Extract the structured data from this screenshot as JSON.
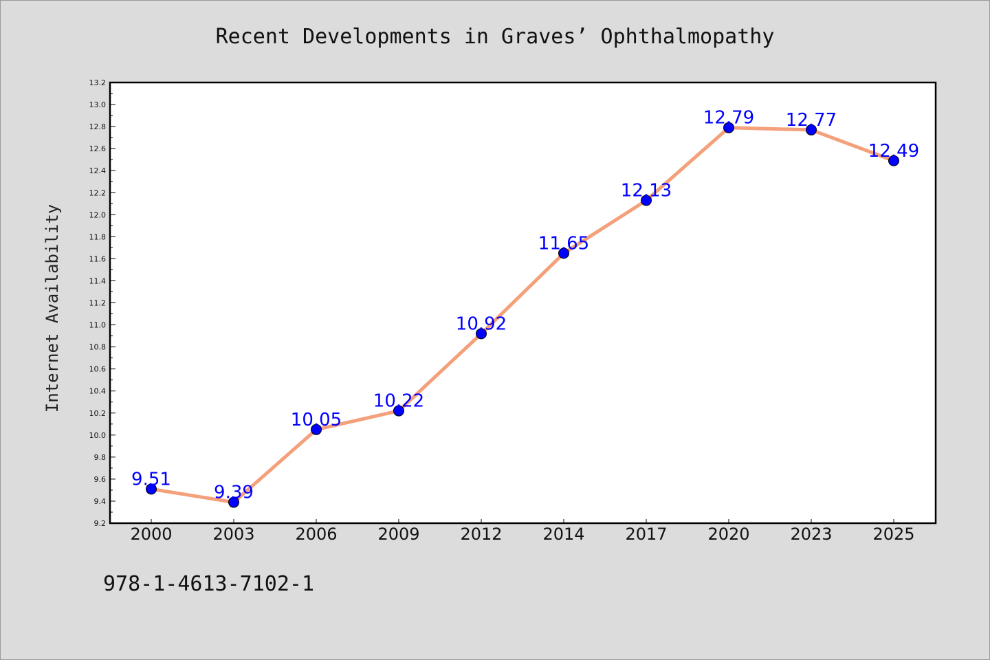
{
  "chart_data": {
    "type": "line",
    "title": "Recent Developments in Graves’ Ophthalmopathy",
    "xlabel": "",
    "ylabel": "Internet Availability",
    "categories": [
      "2000",
      "2003",
      "2006",
      "2009",
      "2012",
      "2014",
      "2017",
      "2020",
      "2023",
      "2025"
    ],
    "series": [
      {
        "values": [
          9.51,
          9.39,
          10.05,
          10.22,
          10.92,
          11.65,
          12.13,
          12.79,
          12.77,
          12.49
        ]
      }
    ],
    "data_labels": [
      "9.51",
      "9.39",
      "10.05",
      "10.22",
      "10.92",
      "11.65",
      "12.13",
      "12.79",
      "12.77",
      "12.49"
    ],
    "ylim": [
      9.2,
      13.2
    ],
    "yticks": [
      "9.2",
      "9.4",
      "9.6",
      "9.8",
      "10.0",
      "10.2",
      "10.4",
      "10.6",
      "10.8",
      "11.0",
      "11.2",
      "11.4",
      "11.6",
      "11.8",
      "12.0",
      "12.2",
      "12.4",
      "12.6",
      "12.8",
      "13.0",
      "13.2"
    ],
    "grid": false,
    "legend": "none",
    "colors": {
      "line": "#f4a07a",
      "marker": "#0000ff",
      "label": "#0000ff",
      "plot_bg": "#ffffff",
      "page_bg": "#dcdcdc"
    }
  },
  "footer": {
    "code": "978-1-4613-7102-1"
  }
}
